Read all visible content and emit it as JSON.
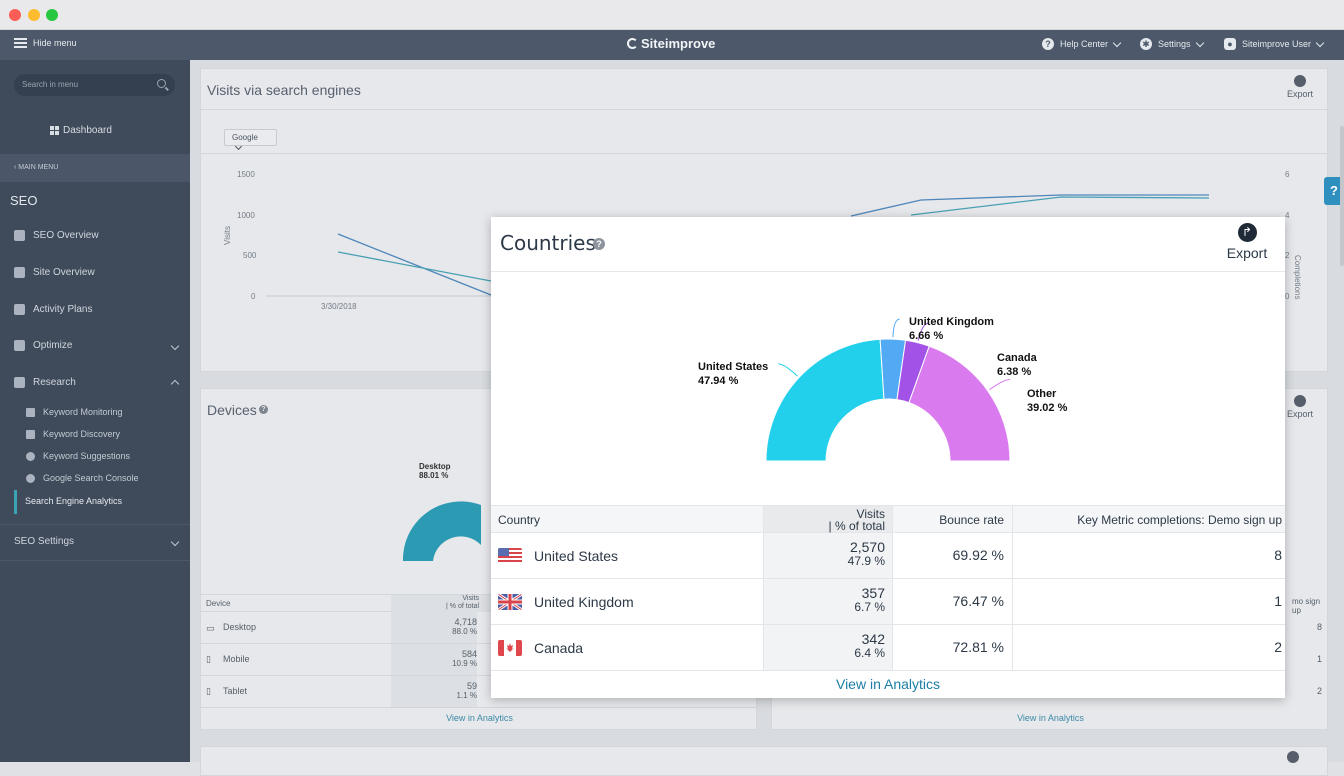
{
  "window": {
    "dot_colors": [
      "#fc5d57",
      "#fdbc2e",
      "#27c840"
    ]
  },
  "topnav": {
    "hide_menu": "Hide menu",
    "logo": "Siteimprove",
    "help_center": "Help Center",
    "settings": "Settings",
    "user": "Siteimprove User"
  },
  "sidebar": {
    "search_placeholder": "Search in menu",
    "dashboard": "Dashboard",
    "main_menu": "MAIN MENU",
    "section_title": "SEO",
    "items": [
      {
        "label": "SEO Overview",
        "icon": "home-icon"
      },
      {
        "label": "Site Overview",
        "icon": "calendar-icon"
      },
      {
        "label": "Activity Plans",
        "icon": "tools-icon"
      },
      {
        "label": "Optimize",
        "icon": "sliders-icon"
      },
      {
        "label": "Research",
        "icon": "compass-icon"
      }
    ],
    "research_sub": [
      {
        "label": "Keyword Monitoring",
        "icon": "radar-icon"
      },
      {
        "label": "Keyword Discovery",
        "icon": "binoculars-icon"
      },
      {
        "label": "Keyword Suggestions",
        "icon": "search-icon"
      },
      {
        "label": "Google Search Console",
        "icon": "google-icon"
      },
      {
        "label": "Search Engine Analytics",
        "icon": ""
      }
    ],
    "seo_settings": "SEO Settings"
  },
  "background": {
    "visits_title": "Visits via search engines",
    "engine_dropdown": "Google",
    "export": "Export",
    "y_ticks_left": [
      "1500",
      "1000",
      "500",
      "0"
    ],
    "y_ticks_right": [
      "6",
      "4",
      "2",
      "0"
    ],
    "y_label_left": "Visits",
    "y_label_right": "Completions",
    "x_tick": "3/30/2018",
    "devices_title": "Devices",
    "desktop_label": "Desktop",
    "desktop_pct": "88.01 %",
    "device_table": {
      "headers": [
        "Device",
        "Visits",
        "| % of total"
      ],
      "rows": [
        {
          "device": "Desktop",
          "visits": "4,718",
          "pct": "88.0 %"
        },
        {
          "device": "Mobile",
          "visits": "584",
          "pct": "10.9 %"
        },
        {
          "device": "Tablet",
          "visits": "59",
          "pct": "1.1 %"
        }
      ]
    },
    "right_header_partial": "mo sign up",
    "right_values": [
      "8",
      "1",
      "2"
    ],
    "view_in_analytics": "View in Analytics"
  },
  "modal": {
    "title": "Countries",
    "export": "Export",
    "table_headers": {
      "country": "Country",
      "visits": "Visits",
      "visits_sub": "| % of total",
      "bounce": "Bounce rate",
      "key_metric": "Key Metric completions: Demo sign up"
    },
    "rows": [
      {
        "country": "United States",
        "visits": "2,570",
        "pct": "47.9 %",
        "bounce": "69.92 %",
        "completions": "8",
        "flag": "us-flag-icon"
      },
      {
        "country": "United Kingdom",
        "visits": "357",
        "pct": "6.7 %",
        "bounce": "76.47 %",
        "completions": "1",
        "flag": "uk-flag-icon"
      },
      {
        "country": "Canada",
        "visits": "342",
        "pct": "6.4 %",
        "bounce": "72.81 %",
        "completions": "2",
        "flag": "canada-flag-icon"
      }
    ],
    "view_in_analytics": "View in Analytics"
  },
  "chart_data": {
    "type": "pie",
    "subtype": "half-donut",
    "slices": [
      {
        "name": "United States",
        "value": 47.94,
        "label": "47.94 %",
        "color": "#22d0eb"
      },
      {
        "name": "United Kingdom",
        "value": 6.66,
        "label": "6.66 %",
        "color": "#52a9f4"
      },
      {
        "name": "Canada",
        "value": 6.38,
        "label": "6.38 %",
        "color": "#a352e8"
      },
      {
        "name": "Other",
        "value": 39.02,
        "label": "39.02 %",
        "color": "#d97bee"
      }
    ]
  }
}
